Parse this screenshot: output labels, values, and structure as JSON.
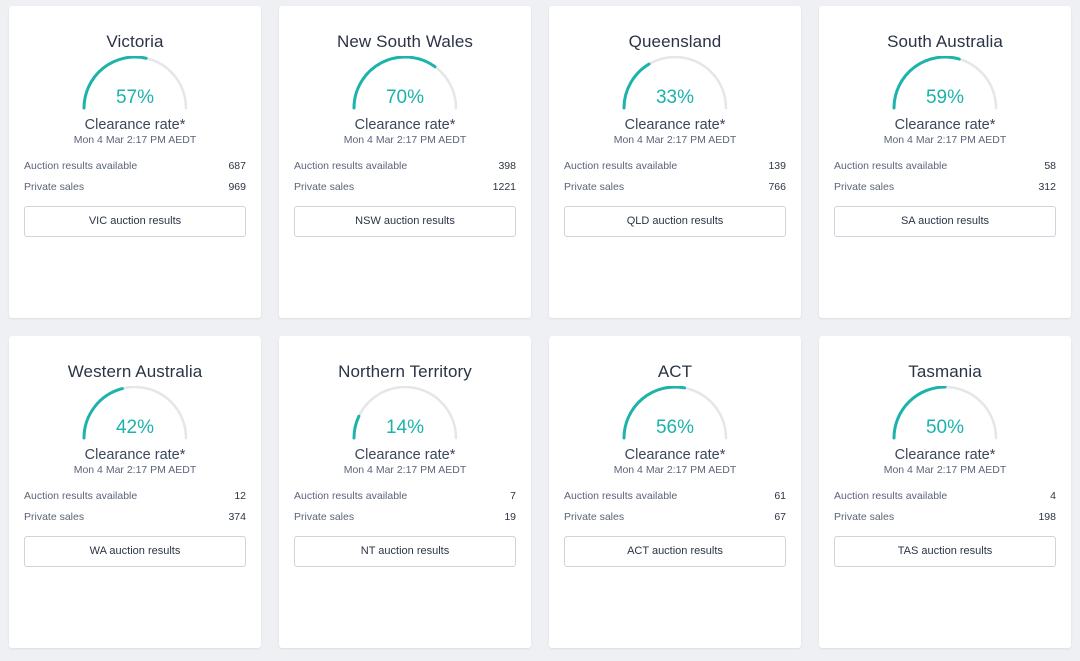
{
  "colors": {
    "accent": "#1bb3aa",
    "track": "#e4e6ea",
    "background": "#eef0f4",
    "card": "#ffffff"
  },
  "cards": [
    {
      "state": "Victoria",
      "rate": 57,
      "rate_label": "57%",
      "clearance_label": "Clearance rate*",
      "timestamp": "Mon 4 Mar 2:17 PM AEDT",
      "auction_label": "Auction results available",
      "auction_value": "687",
      "private_label": "Private sales",
      "private_value": "969",
      "button_label": "VIC auction results"
    },
    {
      "state": "New South Wales",
      "rate": 70,
      "rate_label": "70%",
      "clearance_label": "Clearance rate*",
      "timestamp": "Mon 4 Mar 2:17 PM AEDT",
      "auction_label": "Auction results available",
      "auction_value": "398",
      "private_label": "Private sales",
      "private_value": "1221",
      "button_label": "NSW auction results"
    },
    {
      "state": "Queensland",
      "rate": 33,
      "rate_label": "33%",
      "clearance_label": "Clearance rate*",
      "timestamp": "Mon 4 Mar 2:17 PM AEDT",
      "auction_label": "Auction results available",
      "auction_value": "139",
      "private_label": "Private sales",
      "private_value": "766",
      "button_label": "QLD auction results"
    },
    {
      "state": "South Australia",
      "rate": 59,
      "rate_label": "59%",
      "clearance_label": "Clearance rate*",
      "timestamp": "Mon 4 Mar 2:17 PM AEDT",
      "auction_label": "Auction results available",
      "auction_value": "58",
      "private_label": "Private sales",
      "private_value": "312",
      "button_label": "SA auction results"
    },
    {
      "state": "Western Australia",
      "rate": 42,
      "rate_label": "42%",
      "clearance_label": "Clearance rate*",
      "timestamp": "Mon 4 Mar 2:17 PM AEDT",
      "auction_label": "Auction results available",
      "auction_value": "12",
      "private_label": "Private sales",
      "private_value": "374",
      "button_label": "WA auction results"
    },
    {
      "state": "Northern Territory",
      "rate": 14,
      "rate_label": "14%",
      "clearance_label": "Clearance rate*",
      "timestamp": "Mon 4 Mar 2:17 PM AEDT",
      "auction_label": "Auction results available",
      "auction_value": "7",
      "private_label": "Private sales",
      "private_value": "19",
      "button_label": "NT auction results"
    },
    {
      "state": "ACT",
      "rate": 56,
      "rate_label": "56%",
      "clearance_label": "Clearance rate*",
      "timestamp": "Mon 4 Mar 2:17 PM AEDT",
      "auction_label": "Auction results available",
      "auction_value": "61",
      "private_label": "Private sales",
      "private_value": "67",
      "button_label": "ACT auction results"
    },
    {
      "state": "Tasmania",
      "rate": 50,
      "rate_label": "50%",
      "clearance_label": "Clearance rate*",
      "timestamp": "Mon 4 Mar 2:17 PM AEDT",
      "auction_label": "Auction results available",
      "auction_value": "4",
      "private_label": "Private sales",
      "private_value": "198",
      "button_label": "TAS auction results"
    }
  ]
}
